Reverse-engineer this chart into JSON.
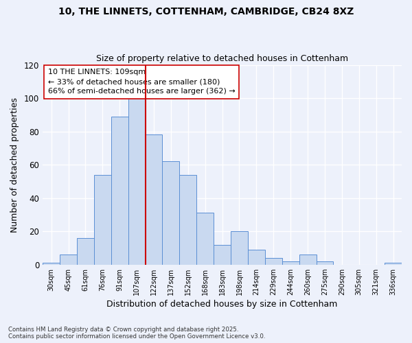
{
  "title_line1": "10, THE LINNETS, COTTENHAM, CAMBRIDGE, CB24 8XZ",
  "title_line2": "Size of property relative to detached houses in Cottenham",
  "xlabel": "Distribution of detached houses by size in Cottenham",
  "ylabel": "Number of detached properties",
  "categories": [
    "30sqm",
    "45sqm",
    "61sqm",
    "76sqm",
    "91sqm",
    "107sqm",
    "122sqm",
    "137sqm",
    "152sqm",
    "168sqm",
    "183sqm",
    "198sqm",
    "214sqm",
    "229sqm",
    "244sqm",
    "260sqm",
    "275sqm",
    "290sqm",
    "305sqm",
    "321sqm",
    "336sqm"
  ],
  "values": [
    1,
    6,
    16,
    54,
    89,
    100,
    78,
    62,
    54,
    31,
    12,
    20,
    9,
    4,
    2,
    6,
    2,
    0,
    0,
    0,
    1
  ],
  "bar_color": "#c9d9f0",
  "bar_edge_color": "#5b8fd4",
  "vline_x": 5.5,
  "vline_color": "#cc0000",
  "annotation_text": "10 THE LINNETS: 109sqm\n← 33% of detached houses are smaller (180)\n66% of semi-detached houses are larger (362) →",
  "annotation_box_color": "#ffffff",
  "annotation_box_edge": "#cc0000",
  "ylim": [
    0,
    120
  ],
  "yticks": [
    0,
    20,
    40,
    60,
    80,
    100,
    120
  ],
  "background_color": "#edf1fb",
  "grid_color": "#ffffff",
  "footer_line1": "Contains HM Land Registry data © Crown copyright and database right 2025.",
  "footer_line2": "Contains public sector information licensed under the Open Government Licence v3.0."
}
